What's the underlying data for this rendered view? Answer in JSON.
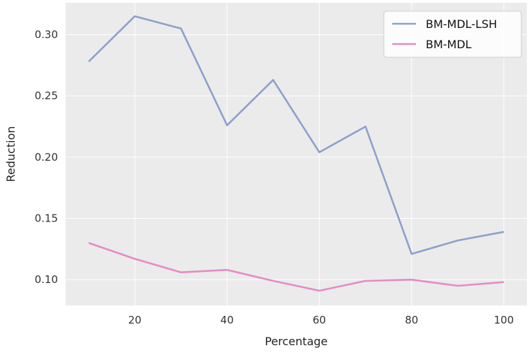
{
  "chart_data": {
    "type": "line",
    "xlabel": "Percentage",
    "ylabel": "Reduction",
    "x": [
      10,
      20,
      30,
      40,
      50,
      60,
      70,
      80,
      90,
      100
    ],
    "series": [
      {
        "name": "BM-MDL-LSH",
        "color": "#8da0cb",
        "values": [
          0.278,
          0.315,
          0.305,
          0.226,
          0.263,
          0.204,
          0.225,
          0.121,
          0.132,
          0.139
        ]
      },
      {
        "name": "BM-MDL",
        "color": "#e78ac3",
        "values": [
          0.13,
          0.117,
          0.106,
          0.108,
          0.099,
          0.091,
          0.099,
          0.1,
          0.095,
          0.098
        ]
      }
    ],
    "xlim": [
      5,
      105
    ],
    "ylim": [
      0.079,
      0.326
    ],
    "xticks": [
      20,
      40,
      60,
      80,
      100
    ],
    "yticks": [
      0.1,
      0.15,
      0.2,
      0.25,
      0.3
    ],
    "xtick_labels": [
      "20",
      "40",
      "60",
      "80",
      "100"
    ],
    "ytick_labels": [
      "0.10",
      "0.15",
      "0.20",
      "0.25",
      "0.30"
    ],
    "grid": true,
    "legend": "top-right",
    "background": "#ebebeb"
  }
}
